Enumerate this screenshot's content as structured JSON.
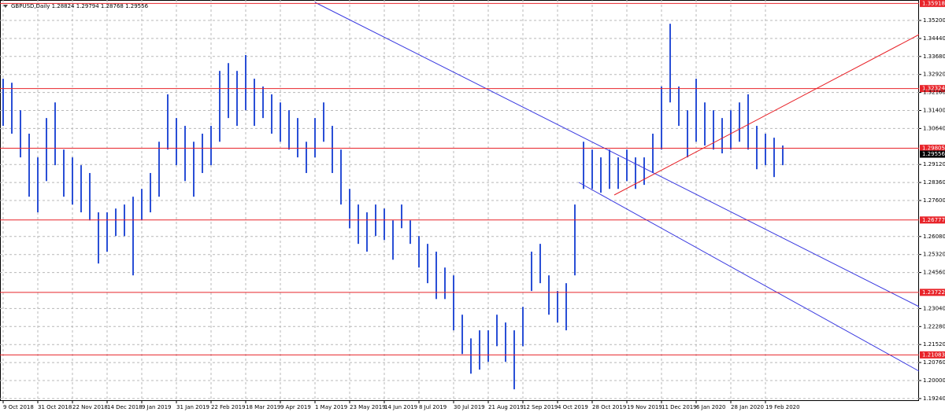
{
  "chart_data": {
    "type": "price_bar",
    "title": "GBPUSD,Daily  1.28824 1.29794 1.28768 1.29556",
    "categories": [
      "9 Oct 2018",
      null,
      null,
      null,
      "31 Oct 2018",
      null,
      null,
      null,
      "22 Nov 2018",
      null,
      null,
      null,
      "14 Dec 2018",
      null,
      null,
      null,
      "9 Jan 2019",
      null,
      null,
      null,
      "31 Jan 2019",
      null,
      null,
      null,
      "22 Feb 2019",
      null,
      null,
      null,
      "18 Mar 2019",
      null,
      null,
      null,
      "9 Apr 2019",
      null,
      null,
      null,
      "1 May 2019",
      null,
      null,
      null,
      "23 May 2019",
      null,
      null,
      null,
      "14 Jun 2019",
      null,
      null,
      null,
      "8 Jul 2019",
      null,
      null,
      null,
      "30 Jul 2019",
      null,
      null,
      null,
      "21 Aug 2019",
      null,
      null,
      null,
      "12 Sep 2019",
      null,
      null,
      null,
      "4 Oct 2019",
      null,
      null,
      null,
      "28 Oct 2019",
      null,
      null,
      null,
      "19 Nov 2019",
      null,
      null,
      null,
      "11 Dec 2019",
      null,
      null,
      null,
      "6 Jan 2020",
      null,
      null,
      null,
      "28 Jan 2020",
      null,
      null,
      null,
      "19 Feb 2020",
      null,
      null
    ],
    "color": "#2a4fd6",
    "high": [
      1.3274,
      1.3257,
      1.3141,
      1.3042,
      1.2942,
      1.3108,
      1.3174,
      1.2975,
      1.2942,
      1.2909,
      1.2876,
      1.271,
      1.271,
      1.2726,
      1.2743,
      1.2776,
      1.2809,
      1.2876,
      1.3008,
      1.3208,
      1.3108,
      1.3075,
      1.3008,
      1.3042,
      1.3075,
      1.3307,
      1.334,
      1.3307,
      1.3374,
      1.3274,
      1.3241,
      1.3208,
      1.3174,
      1.3141,
      1.3108,
      1.3008,
      1.3108,
      1.3174,
      1.3075,
      1.2975,
      1.2809,
      1.2743,
      1.271,
      1.2743,
      1.2726,
      1.2676,
      1.2743,
      1.2676,
      1.261,
      1.2577,
      1.2544,
      1.2477,
      1.2444,
      1.2278,
      1.2178,
      1.2212,
      1.2212,
      1.2278,
      1.2245,
      1.2212,
      1.2311,
      1.2544,
      1.2577,
      1.2444,
      1.2378,
      1.2411,
      1.2743,
      1.3008,
      1.2975,
      1.2942,
      1.2975,
      1.2942,
      1.2975,
      1.2942,
      1.2942,
      1.3042,
      1.3241,
      1.3506,
      1.3241,
      1.3141,
      1.3274,
      1.3174,
      1.3141,
      1.3108,
      1.3141,
      1.3174,
      1.3208,
      1.3075,
      1.3042,
      1.3025,
      1.2992
    ],
    "low": [
      1.3075,
      1.3042,
      1.2942,
      1.2776,
      1.271,
      1.2842,
      1.2909,
      1.2776,
      1.2743,
      1.271,
      1.2676,
      1.2494,
      1.2544,
      1.261,
      1.261,
      1.2444,
      1.2676,
      1.271,
      1.2776,
      1.2975,
      1.2909,
      1.2842,
      1.2776,
      1.2876,
      1.2909,
      1.3008,
      1.3108,
      1.3075,
      1.3141,
      1.3075,
      1.3108,
      1.3042,
      1.3008,
      1.2975,
      1.2942,
      1.2876,
      1.2942,
      1.3008,
      1.2876,
      1.2743,
      1.2643,
      1.2577,
      1.2544,
      1.261,
      1.2593,
      1.251,
      1.2643,
      1.2577,
      1.2477,
      1.2411,
      1.2344,
      1.2344,
      1.2212,
      1.2112,
      1.2029,
      1.2046,
      1.2079,
      1.2145,
      1.2079,
      1.1963,
      1.2145,
      1.2378,
      1.2411,
      1.2278,
      1.2245,
      1.2212,
      1.2444,
      1.2809,
      1.2809,
      1.2793,
      1.2809,
      1.2809,
      1.2842,
      1.2809,
      1.2826,
      1.2876,
      1.2975,
      1.3174,
      1.3075,
      1.2942,
      1.3008,
      1.2992,
      1.2975,
      1.2959,
      1.2975,
      1.3008,
      1.2975,
      1.2892,
      1.2909,
      1.2859,
      1.2909
    ],
    "ylim": [
      1.19137,
      1.36063
    ],
    "yticks": [
      {
        "value": 1.352,
        "label": "1.35200"
      },
      {
        "value": 1.3444,
        "label": "1.34440"
      },
      {
        "value": 1.3368,
        "label": "1.33680"
      },
      {
        "value": 1.3292,
        "label": "1.32920"
      },
      {
        "value": 1.3216,
        "label": "1.32160"
      },
      {
        "value": 1.314,
        "label": "1.31400"
      },
      {
        "value": 1.3064,
        "label": "1.30640"
      },
      {
        "value": 1.2912,
        "label": "1.29120"
      },
      {
        "value": 1.2836,
        "label": "1.28360"
      },
      {
        "value": 1.276,
        "label": "1.27600"
      },
      {
        "value": 1.2608,
        "label": "1.26080"
      },
      {
        "value": 1.2532,
        "label": "1.25320"
      },
      {
        "value": 1.2456,
        "label": "1.24560"
      },
      {
        "value": 1.2304,
        "label": "1.23040"
      },
      {
        "value": 1.2228,
        "label": "1.22280"
      },
      {
        "value": 1.2152,
        "label": "1.21520"
      },
      {
        "value": 1.2076,
        "label": "1.20760"
      },
      {
        "value": 1.2,
        "label": "1.20000"
      },
      {
        "value": 1.1924,
        "label": "1.19240"
      }
    ],
    "levels": [
      1.35918,
      1.32324,
      1.29805,
      1.26777,
      1.23722,
      1.21083
    ],
    "level_color": "#e8242a",
    "last_price": 1.29556,
    "grid": true
  }
}
